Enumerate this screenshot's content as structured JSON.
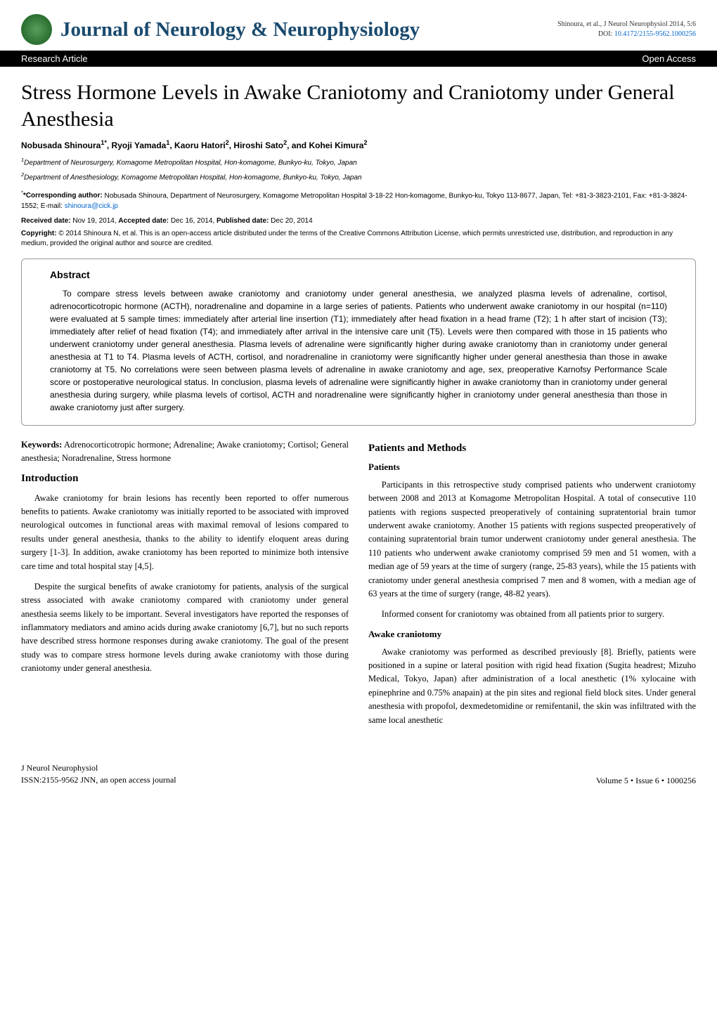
{
  "header": {
    "journal_title": "Journal of Neurology & Neurophysiology",
    "citation_line1": "Shinoura, et al., J Neurol Neurophysiol 2014, 5:6",
    "citation_line2": "DOI: ",
    "doi_text": "10.4172/2155-9562.1000256"
  },
  "bar": {
    "left": "Research Article",
    "right": "Open Access"
  },
  "article": {
    "title": "Stress Hormone Levels in Awake Craniotomy and Craniotomy under General Anesthesia",
    "authors_html": "Nobusada Shinoura<sup>1*</sup>, Ryoji Yamada<sup>1</sup>, Kaoru Hatori<sup>2</sup>, Hiroshi Sato<sup>2</sup>, and Kohei Kimura<sup>2</sup>",
    "aff1": "1Department of Neurosurgery, Komagome Metropolitan Hospital, Hon-komagome, Bunkyo-ku, Tokyo, Japan",
    "aff2": "2Department of Anesthesiology, Komagome Metropolitan Hospital, Hon-komagome, Bunkyo-ku, Tokyo, Japan",
    "corresponding_label": "*Corresponding author:",
    "corresponding_text": " Nobusada Shinoura, Department of Neurosurgery, Komagome Metropolitan Hospital 3-18-22 Hon-komagome, Bunkyo-ku, Tokyo 113-8677, Japan, Tel: +81-3-3823-2101, Fax: +81-3-3824-1552; E-mail: ",
    "email": "shinoura@cick.jp",
    "received_label": "Received date:",
    "received": " Nov 19, 2014, ",
    "accepted_label": "Accepted date:",
    "accepted": " Dec 16, 2014, ",
    "published_label": "Published date:",
    "published": " Dec 20, 2014",
    "copyright_label": "Copyright:",
    "copyright": " © 2014 Shinoura N, et al. This is an open-access article distributed under the terms of the Creative Commons Attribution License, which permits unrestricted use, distribution, and reproduction in any medium, provided the original author and source are credited."
  },
  "abstract": {
    "heading": "Abstract",
    "text": "To compare stress levels between awake craniotomy and craniotomy under general anesthesia, we analyzed plasma levels of adrenaline, cortisol, adrenocorticotropic hormone (ACTH), noradrenaline and dopamine in a large series of patients. Patients who underwent awake craniotomy in our hospital (n=110) were evaluated at 5 sample times: immediately after arterial line insertion (T1); immediately after head fixation in a head frame (T2); 1 h after start of incision (T3); immediately after relief of head fixation (T4); and immediately after arrival in the intensive care unit (T5). Levels were then compared with those in 15 patients who underwent craniotomy under general anesthesia. Plasma levels of adrenaline were significantly higher during awake craniotomy than in craniotomy under general anesthesia at T1 to T4. Plasma levels of ACTH, cortisol, and noradrenaline in craniotomy were significantly higher under general anesthesia than those in awake craniotomy at T5. No correlations were seen between plasma levels of adrenaline in awake craniotomy and age, sex, preoperative Karnofsy Performance Scale score or postoperative neurological status. In conclusion, plasma levels of adrenaline were significantly higher in awake craniotomy than in craniotomy under general anesthesia during surgery, while plasma levels of cortisol, ACTH and noradrenaline were significantly higher in craniotomy under general anesthesia than those in awake craniotomy just after surgery."
  },
  "left_column": {
    "keywords_heading": "Keywords:",
    "keywords_text": " Adrenocorticotropic hormone; Adrenaline; Awake craniotomy; Cortisol; General anesthesia; Noradrenaline, Stress hormone",
    "intro_heading": "Introduction",
    "intro_p1": "Awake craniotomy for brain lesions has recently been reported to offer numerous benefits to patients. Awake craniotomy was initially reported to be associated with improved neurological outcomes in functional areas with maximal removal of lesions compared to results under general anesthesia, thanks to the ability to identify eloquent areas during surgery [1-3]. In addition, awake craniotomy has been reported to minimize both intensive care time and total hospital stay [4,5].",
    "intro_p2": "Despite the surgical benefits of awake craniotomy for patients, analysis of the surgical stress associated with awake craniotomy compared with craniotomy under general anesthesia seems likely to be important. Several investigators have reported the responses of inflammatory mediators and amino acids during awake craniotomy [6,7], but no such reports have described stress hormone responses during awake craniotomy. The goal of the present study was to compare stress hormone levels during awake craniotomy with those during craniotomy under general anesthesia."
  },
  "right_column": {
    "pm_heading": "Patients and Methods",
    "patients_heading": "Patients",
    "patients_p1": "Participants in this retrospective study comprised patients who underwent craniotomy between 2008 and 2013 at Komagome Metropolitan Hospital. A total of consecutive 110 patients with regions suspected preoperatively of containing supratentorial brain tumor underwent awake craniotomy. Another 15 patients with regions suspected preoperatively of containing supratentorial brain tumor underwent craniotomy under general anesthesia. The 110 patients who underwent awake craniotomy comprised 59 men and 51 women, with a median age of 59 years at the time of surgery (range, 25-83 years), while the 15 patients with craniotomy under general anesthesia comprised 7 men and 8 women, with a median age of 63 years at the time of surgery (range, 48-82 years).",
    "patients_p2": "Informed consent for craniotomy was obtained from all patients prior to surgery.",
    "awake_heading": "Awake craniotomy",
    "awake_p1": "Awake craniotomy was performed as described previously [8]. Briefly, patients were positioned in a supine or lateral position with rigid head fixation (Sugita headrest; Mizuho Medical, Tokyo, Japan) after administration of a local anesthetic (1% xylocaine with epinephrine and 0.75% anapain) at the pin sites and regional field block sites. Under general anesthesia with propofol, dexmedetomidine or remifentanil, the skin was infiltrated with the same local anesthetic"
  },
  "footer": {
    "left_line1": "J Neurol Neurophysiol",
    "left_line2": "ISSN:2155-9562 JNN, an open access journal",
    "right": "Volume 5 • Issue 6 • 1000256"
  }
}
